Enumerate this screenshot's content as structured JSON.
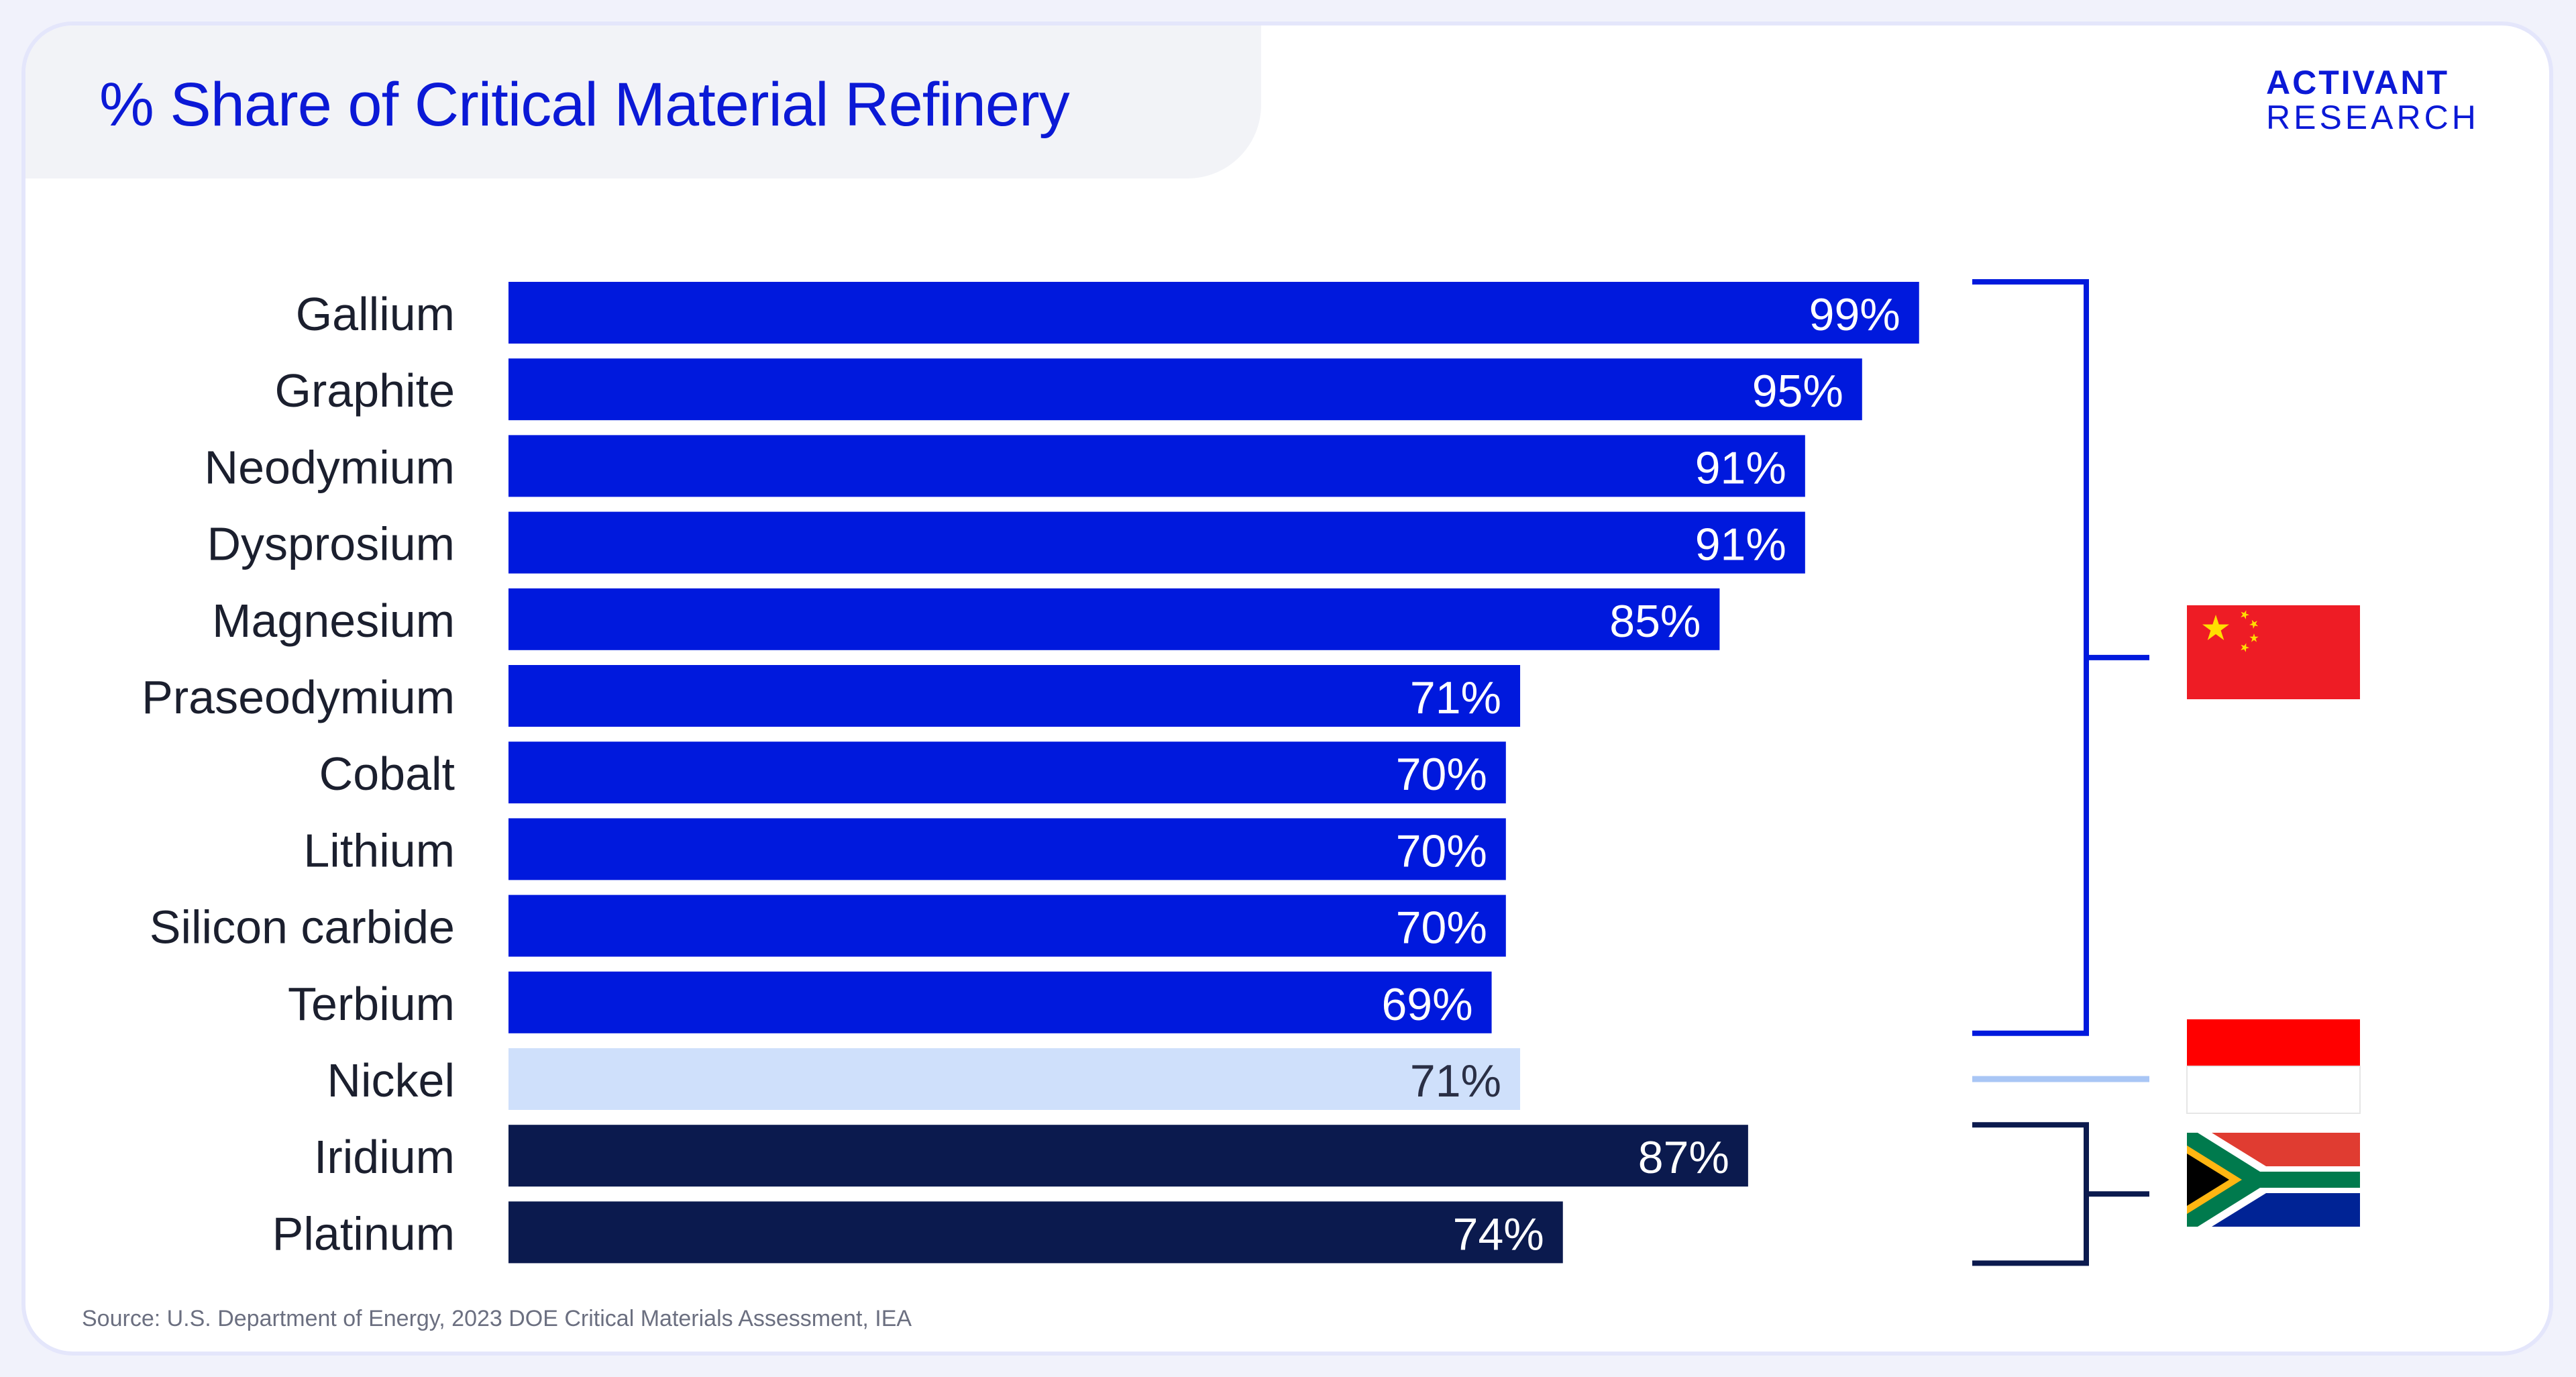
{
  "title": "% Share of Critical Material Refinery",
  "logo": {
    "line1": "ACTIVANT",
    "line2": "RESEARCH"
  },
  "source": "Source: U.S. Department of Energy, 2023 DOE Critical Materials Assessment, IEA",
  "colors": {
    "china": "#0019dd",
    "indonesia": "#cfe0fb",
    "south_africa": "#0b1a4e",
    "brand": "#0b19d6"
  },
  "chart_data": {
    "type": "bar",
    "orientation": "horizontal",
    "title": "% Share of Critical Material Refinery",
    "xlabel": "",
    "ylabel": "",
    "xlim": [
      0,
      100
    ],
    "value_suffix": "%",
    "categories": [
      "Gallium",
      "Graphite",
      "Neodymium",
      "Dysprosium",
      "Magnesium",
      "Praseodymium",
      "Cobalt",
      "Lithium",
      "Silicon carbide",
      "Terbium",
      "Nickel",
      "Iridium",
      "Platinum"
    ],
    "values": [
      99,
      95,
      91,
      91,
      85,
      71,
      70,
      70,
      70,
      69,
      71,
      87,
      74
    ],
    "country_groups": [
      {
        "country": "China",
        "flag": "china-flag",
        "color_key": "china",
        "categories": [
          "Gallium",
          "Graphite",
          "Neodymium",
          "Dysprosium",
          "Magnesium",
          "Praseodymium",
          "Cobalt",
          "Lithium",
          "Silicon carbide",
          "Terbium"
        ]
      },
      {
        "country": "Indonesia",
        "flag": "indonesia-flag",
        "color_key": "indonesia",
        "categories": [
          "Nickel"
        ]
      },
      {
        "country": "South Africa",
        "flag": "south-africa-flag",
        "color_key": "south_africa",
        "categories": [
          "Iridium",
          "Platinum"
        ]
      }
    ]
  }
}
